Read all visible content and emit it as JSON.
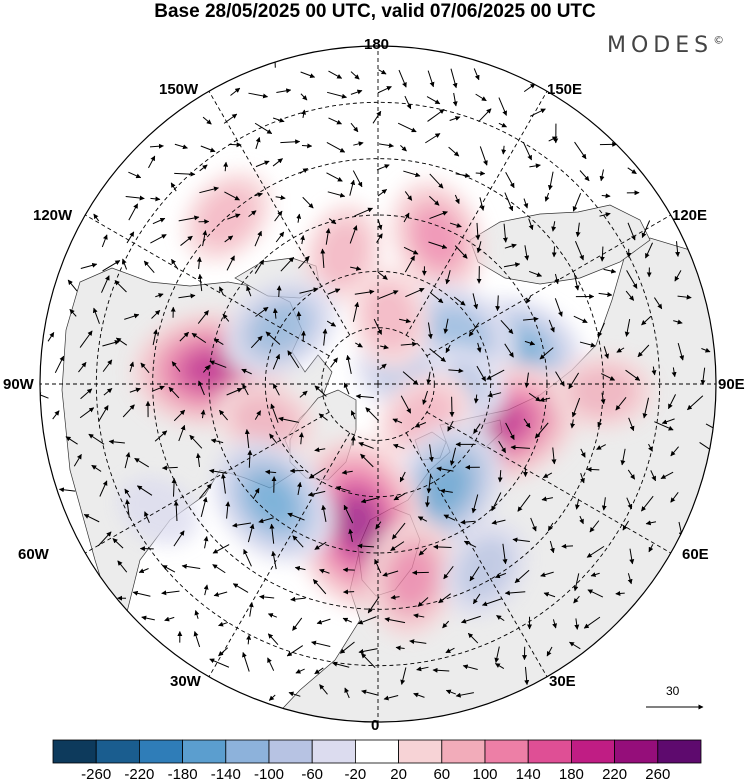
{
  "title": "Base 28/05/2025 00 UTC, valid 07/06/2025 00 UTC",
  "logo": "MODES",
  "logo_mark": "©",
  "longitude_labels": {
    "top": "180",
    "bottom": "0",
    "left": "90W",
    "right": "90E",
    "upper_left_1": "150W",
    "upper_left_2": "120W",
    "upper_right_1": "150E",
    "upper_right_2": "120E",
    "lower_left_1": "60W",
    "lower_left_2": "30W",
    "lower_right_1": "60E",
    "lower_right_2": "30E"
  },
  "reference_vector": {
    "label": "30"
  },
  "colorbar": {
    "colors": [
      "#0d3a5c",
      "#1a5d8f",
      "#2f7db8",
      "#5b9ecf",
      "#8db2db",
      "#b7c3e3",
      "#dcdcef",
      "#ffffff",
      "#f7d3d6",
      "#f2acba",
      "#ed7fa6",
      "#df4f95",
      "#c01d84",
      "#950e7a",
      "#5e0a6e"
    ],
    "labels": [
      "-260",
      "-220",
      "-180",
      "-140",
      "-100",
      "-60",
      "-20",
      "20",
      "60",
      "100",
      "140",
      "180",
      "220",
      "260"
    ]
  },
  "map": {
    "ocean_color": "#ffffff",
    "land_color": "#ececec",
    "anomalies": [
      {
        "lon": -95,
        "colat": 30,
        "value": 180
      },
      {
        "lon": -72,
        "colat": 21,
        "value": 60
      },
      {
        "lon": -165,
        "colat": 24,
        "value": 60
      },
      {
        "lon": 158,
        "colat": 28,
        "value": 100
      },
      {
        "lon": 104,
        "colat": 25,
        "value": -140
      },
      {
        "lon": 122,
        "colat": 17,
        "value": -100
      },
      {
        "lon": 72,
        "colat": 23,
        "value": 180
      },
      {
        "lon": 84,
        "colat": 12,
        "value": -100
      },
      {
        "lon": 110,
        "colat": 5,
        "value": -60
      },
      {
        "lon": 55,
        "colat": 10,
        "value": 60
      },
      {
        "lon": 33,
        "colat": 22,
        "value": -140
      },
      {
        "lon": -8,
        "colat": 25,
        "value": 220
      },
      {
        "lon": 10,
        "colat": 35,
        "value": 100
      },
      {
        "lon": -42,
        "colat": 28,
        "value": -140
      },
      {
        "lon": -120,
        "colat": 20,
        "value": -100
      },
      {
        "lon": -138,
        "colat": 40,
        "value": 60
      },
      {
        "lon": 30,
        "colat": 38,
        "value": -60
      },
      {
        "lon": 88,
        "colat": 40,
        "value": 60
      },
      {
        "lon": -60,
        "colat": 45,
        "value": -20
      },
      {
        "lon": 170,
        "colat": 12,
        "value": 60
      }
    ]
  }
}
